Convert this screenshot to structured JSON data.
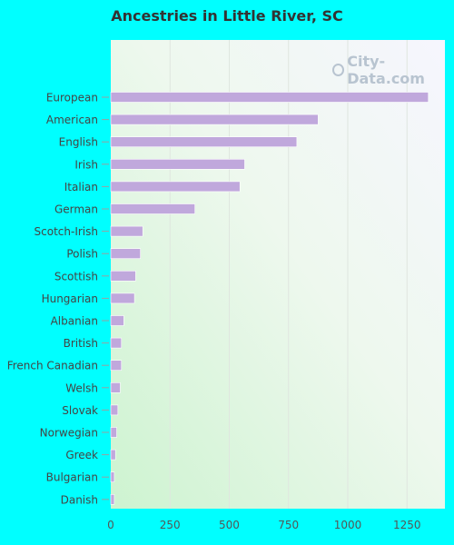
{
  "chart_data": {
    "type": "bar",
    "orientation": "horizontal",
    "title": "Ancestries in Little River, SC",
    "categories": [
      "European",
      "American",
      "English",
      "Irish",
      "Italian",
      "German",
      "Scotch-Irish",
      "Polish",
      "Scottish",
      "Hungarian",
      "Albanian",
      "British",
      "French Canadian",
      "Welsh",
      "Slovak",
      "Norwegian",
      "Greek",
      "Bulgarian",
      "Danish"
    ],
    "values": [
      1340,
      875,
      785,
      565,
      545,
      355,
      135,
      125,
      105,
      100,
      55,
      45,
      45,
      40,
      30,
      25,
      20,
      15,
      15
    ],
    "xlim": [
      0,
      1410
    ],
    "xticks": [
      0,
      250,
      500,
      750,
      1000,
      1250
    ],
    "xlabel": "",
    "ylabel": "",
    "grid": "vertical",
    "bar_color": "#c0a8dc"
  },
  "watermark": "City-Data.com",
  "colors": {
    "background": "#00ffff",
    "bar": "#c0a8dc",
    "title": "#333333"
  }
}
